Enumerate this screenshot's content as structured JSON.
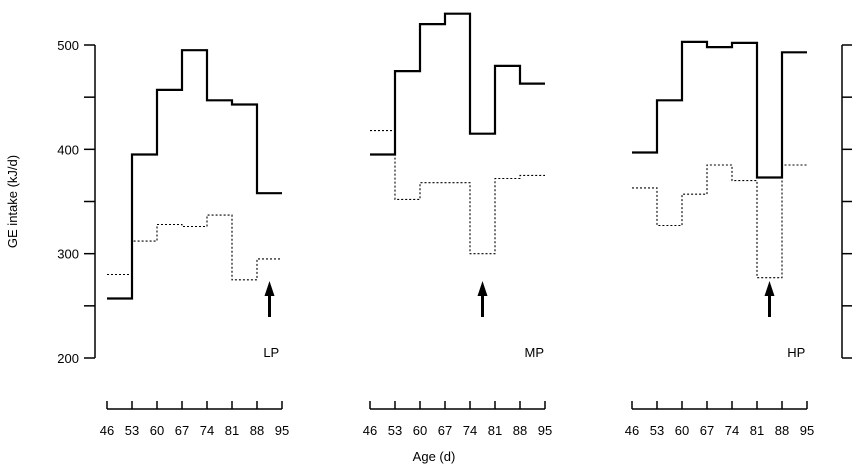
{
  "chart_data": {
    "type": "line",
    "step": true,
    "ylabel": "GE intake (kJ/d)",
    "xlabel": "Age (d)",
    "ylim": [
      200,
      500
    ],
    "yticks": [
      200,
      250,
      300,
      350,
      400,
      450,
      500
    ],
    "ytick_labels": [
      "200",
      "300",
      "400",
      "500"
    ],
    "x_ticks": [
      46,
      53,
      60,
      67,
      74,
      81,
      88,
      95
    ],
    "x_tick_labels": [
      "46",
      "53",
      "60",
      "67",
      "74",
      "81",
      "88",
      "95"
    ],
    "panels": [
      {
        "label": "LP",
        "arrow_age": 91.5,
        "series": [
          {
            "style": "solid",
            "values": [
              257,
              395,
              457,
              495,
              447,
              443,
              358
            ]
          },
          {
            "style": "dotted",
            "values": [
              280,
              312,
              328,
              326,
              337,
              275,
              295
            ]
          }
        ]
      },
      {
        "label": "MP",
        "arrow_age": 77.5,
        "series": [
          {
            "style": "solid",
            "values": [
              395,
              475,
              520,
              530,
              415,
              480,
              463
            ]
          },
          {
            "style": "dotted",
            "values": [
              418,
              352,
              368,
              368,
              300,
              372,
              375
            ]
          }
        ]
      },
      {
        "label": "HP",
        "arrow_age": 84.5,
        "series": [
          {
            "style": "solid",
            "values": [
              397,
              447,
              503,
              498,
              502,
              373,
              493
            ]
          },
          {
            "style": "dotted",
            "values": [
              363,
              327,
              357,
              385,
              370,
              277,
              385
            ]
          }
        ]
      }
    ]
  }
}
